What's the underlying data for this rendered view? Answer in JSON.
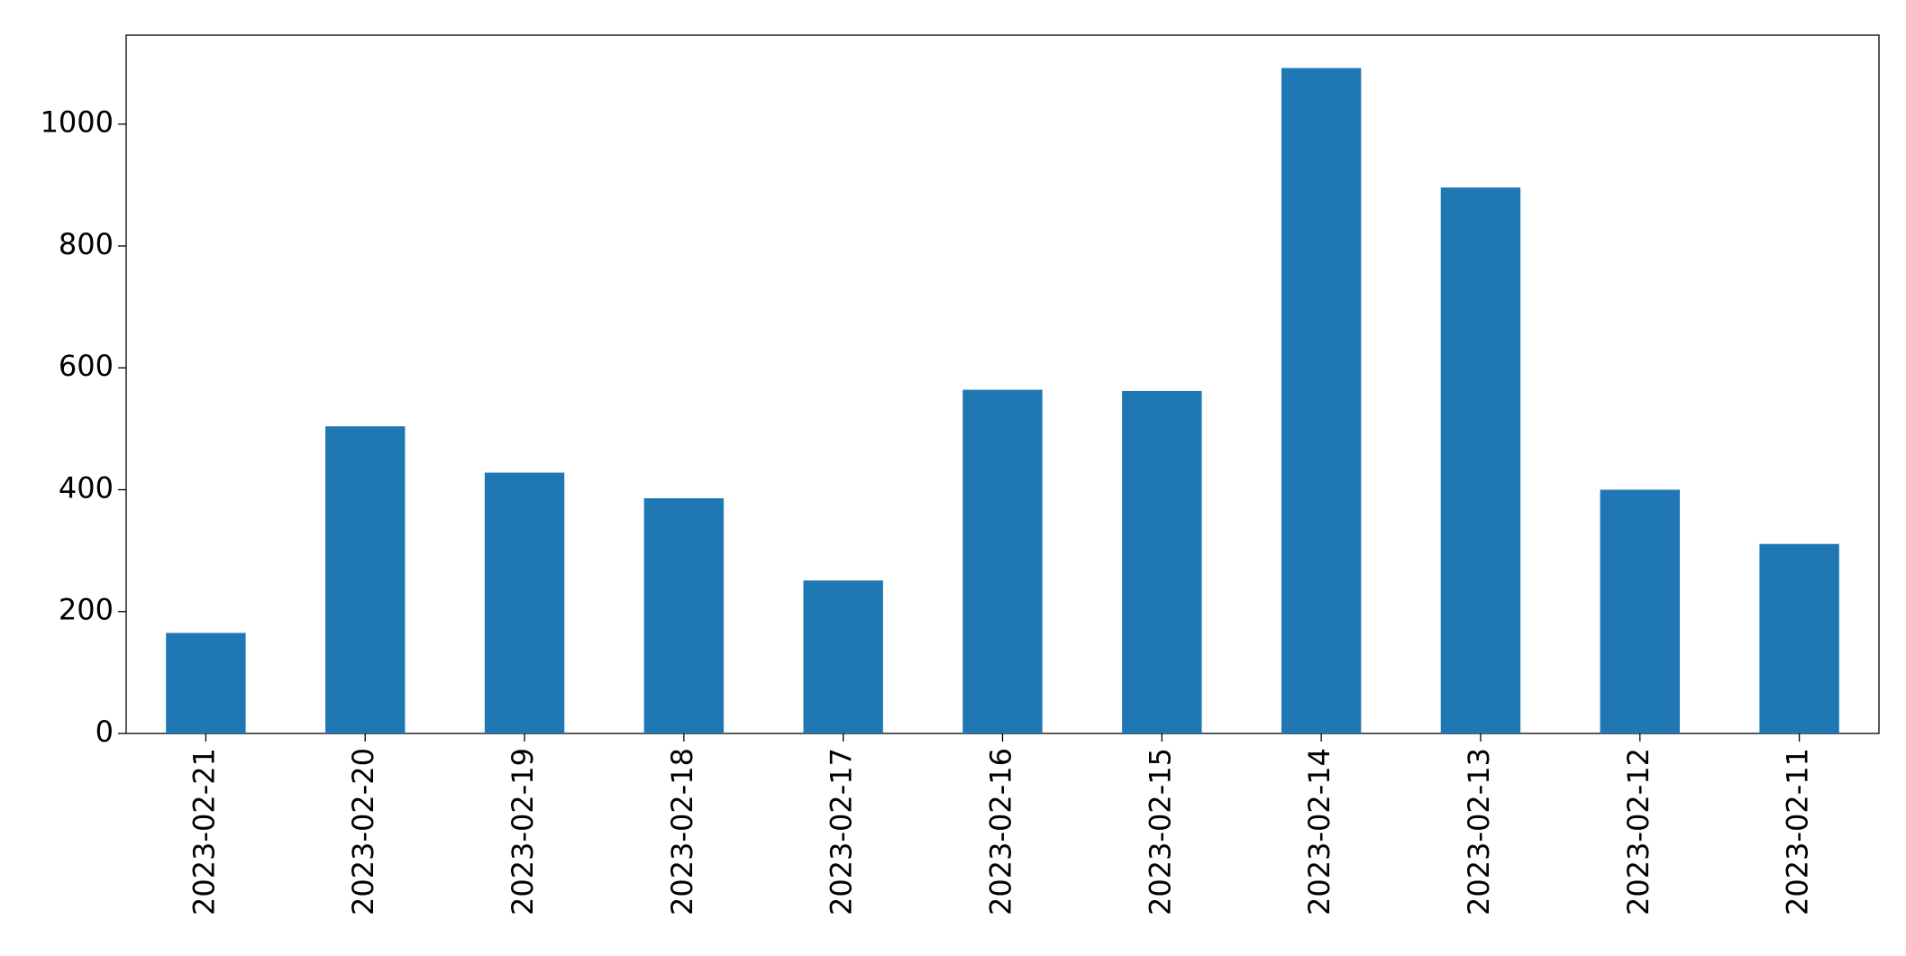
{
  "chart_data": {
    "type": "bar",
    "categories": [
      "2023-02-21",
      "2023-02-20",
      "2023-02-19",
      "2023-02-18",
      "2023-02-17",
      "2023-02-16",
      "2023-02-15",
      "2023-02-14",
      "2023-02-13",
      "2023-02-12",
      "2023-02-11"
    ],
    "values": [
      165,
      504,
      428,
      386,
      251,
      564,
      562,
      1092,
      896,
      400,
      311
    ],
    "color": "#1f77b4",
    "ylim": [
      0,
      1146
    ],
    "yticks": [
      0,
      200,
      400,
      600,
      800,
      1000
    ],
    "grid": false
  }
}
